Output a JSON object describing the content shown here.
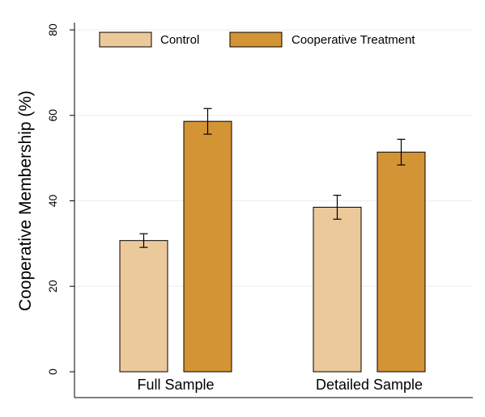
{
  "chart_data": {
    "type": "bar",
    "title": "",
    "xlabel": "",
    "ylabel": "Cooperative Membership (%)",
    "ylim": [
      0,
      80
    ],
    "yticks": [
      0,
      20,
      40,
      60,
      80
    ],
    "grid": true,
    "legend": "top-center",
    "categories": [
      "Full Sample",
      "Detailed Sample"
    ],
    "series": [
      {
        "name": "Control",
        "color": "#ecc99a",
        "values": [
          30.7,
          38.5
        ],
        "ci_low": [
          29.1,
          35.7
        ],
        "ci_high": [
          32.3,
          41.3
        ]
      },
      {
        "name": "Cooperative Treatment",
        "color": "#d39435",
        "values": [
          58.6,
          51.4
        ],
        "ci_low": [
          55.6,
          48.4
        ],
        "ci_high": [
          61.6,
          54.4
        ]
      }
    ]
  }
}
